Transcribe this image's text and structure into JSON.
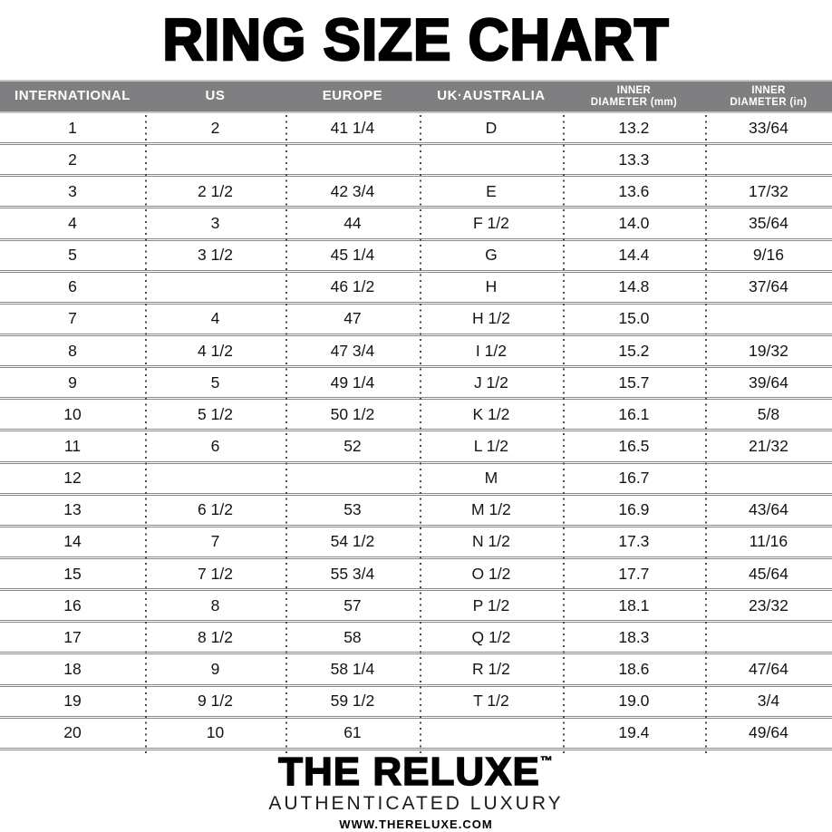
{
  "title": "RING SIZE CHART",
  "chart_data": {
    "type": "table",
    "title": "RING SIZE CHART",
    "columns": [
      "INTERNATIONAL",
      "US",
      "EUROPE",
      "UK·AUSTRALIA",
      "INNER\nDIAMETER (mm)",
      "INNER\nDIAMETER (in)"
    ],
    "rows": [
      [
        "1",
        "2",
        "41 1/4",
        "D",
        "13.2",
        "33/64"
      ],
      [
        "2",
        "",
        "",
        "",
        "13.3",
        ""
      ],
      [
        "3",
        "2 1/2",
        "42 3/4",
        "E",
        "13.6",
        "17/32"
      ],
      [
        "4",
        "3",
        "44",
        "F 1/2",
        "14.0",
        "35/64"
      ],
      [
        "5",
        "3 1/2",
        "45 1/4",
        "G",
        "14.4",
        "9/16"
      ],
      [
        "6",
        "",
        "46 1/2",
        "H",
        "14.8",
        "37/64"
      ],
      [
        "7",
        "4",
        "47",
        "H 1/2",
        "15.0",
        ""
      ],
      [
        "8",
        "4 1/2",
        "47 3/4",
        "I 1/2",
        "15.2",
        "19/32"
      ],
      [
        "9",
        "5",
        "49 1/4",
        "J 1/2",
        "15.7",
        "39/64"
      ],
      [
        "10",
        "5 1/2",
        "50 1/2",
        "K 1/2",
        "16.1",
        "5/8"
      ],
      [
        "11",
        "6",
        "52",
        "L 1/2",
        "16.5",
        "21/32"
      ],
      [
        "12",
        "",
        "",
        "M",
        "16.7",
        ""
      ],
      [
        "13",
        "6 1/2",
        "53",
        "M 1/2",
        "16.9",
        "43/64"
      ],
      [
        "14",
        "7",
        "54 1/2",
        "N 1/2",
        "17.3",
        "11/16"
      ],
      [
        "15",
        "7 1/2",
        "55 3/4",
        "O 1/2",
        "17.7",
        "45/64"
      ],
      [
        "16",
        "8",
        "57",
        "P 1/2",
        "18.1",
        "23/32"
      ],
      [
        "17",
        "8 1/2",
        "58",
        "Q 1/2",
        "18.3",
        ""
      ],
      [
        "18",
        "9",
        "58 1/4",
        "R 1/2",
        "18.6",
        "47/64"
      ],
      [
        "19",
        "9 1/2",
        "59 1/2",
        "T 1/2",
        "19.0",
        "3/4"
      ],
      [
        "20",
        "10",
        "61",
        "",
        "19.4",
        "49/64"
      ]
    ]
  },
  "footer": {
    "brand": "THE RELUXE",
    "trademark": "™",
    "tagline": "AUTHENTICATED LUXURY",
    "website": "WWW.THERELUXE.COM"
  },
  "colors": {
    "header_bg": "#7f7f82",
    "header_edge": "#c6c6c8",
    "header_text": "#ffffff",
    "row_line": "#8a8a8a",
    "dot_color": "#4a4a4a",
    "text": "#141414"
  }
}
